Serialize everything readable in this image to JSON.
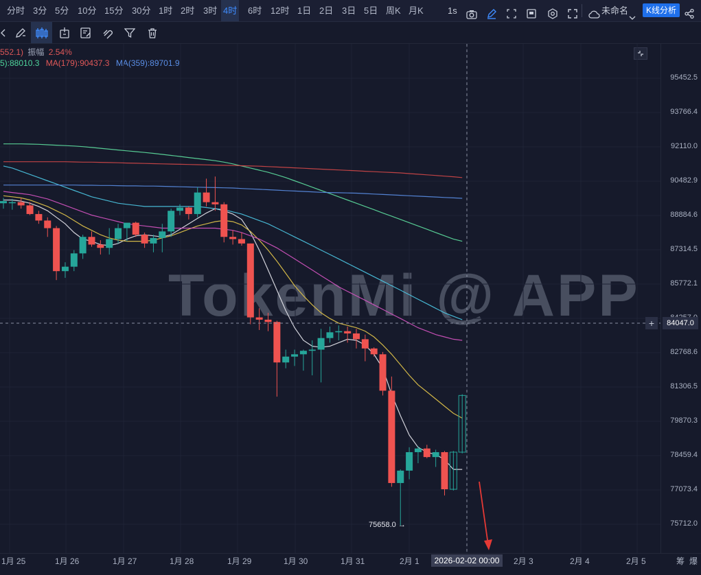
{
  "toolbar": {
    "timeframes": [
      "分时",
      "3分",
      "5分",
      "10分",
      "15分",
      "30分",
      "1时",
      "2时",
      "3时",
      "4时",
      "6时",
      "12时",
      "1日",
      "2日",
      "3日",
      "5日",
      "周K",
      "月K"
    ],
    "active_timeframe": "4时",
    "interval_label": "1s",
    "layout_name": "未命名",
    "k_analysis_label": "K线分析"
  },
  "info": {
    "line1_prefix": "552.1)",
    "line1_amp_label": "振幅",
    "line1_amp_value": "2.54%",
    "ma_a": "5):88010.3",
    "ma_b": "MA(179):90437.3",
    "ma_c": "MA(359):89701.9"
  },
  "price_axis": [
    "95452.5",
    "93766.4",
    "92110.0",
    "90482.9",
    "88884.6",
    "87314.5",
    "85772.1",
    "84257.0",
    "82768.6",
    "81306.5",
    "79870.3",
    "78459.4",
    "77073.4",
    "75712.0"
  ],
  "crosshair": {
    "price": "84047.0",
    "time": "2026-02-02 00:00"
  },
  "low_marker": "75658.0 →",
  "time_axis": [
    "1月 25",
    "1月 26",
    "1月 27",
    "1月 28",
    "1月 29",
    "1月 30",
    "1月 31",
    "2月 1",
    "2月 3",
    "2月 4",
    "2月 5"
  ],
  "bottom_right": [
    "筹",
    "爆"
  ],
  "watermark": "TokenMi @ APP",
  "colors": {
    "up": "#26a69a",
    "down": "#ef5350",
    "accent": "#3f8cff",
    "bg": "#161a2b"
  },
  "chart_data": {
    "type": "candlestick",
    "price_range": [
      75000,
      96500
    ],
    "candles": [
      {
        "o": 89450,
        "h": 89700,
        "l": 89200,
        "c": 89550
      },
      {
        "o": 89450,
        "h": 89650,
        "l": 89150,
        "c": 89500
      },
      {
        "o": 89500,
        "h": 89700,
        "l": 89200,
        "c": 89350
      },
      {
        "o": 89350,
        "h": 89500,
        "l": 88900,
        "c": 88950
      },
      {
        "o": 88950,
        "h": 89100,
        "l": 88500,
        "c": 88650
      },
      {
        "o": 88650,
        "h": 88800,
        "l": 87900,
        "c": 88300
      },
      {
        "o": 88300,
        "h": 88400,
        "l": 85950,
        "c": 86350
      },
      {
        "o": 86350,
        "h": 86750,
        "l": 86050,
        "c": 86550
      },
      {
        "o": 86550,
        "h": 87300,
        "l": 86350,
        "c": 87150
      },
      {
        "o": 87150,
        "h": 88000,
        "l": 86900,
        "c": 87900
      },
      {
        "o": 87900,
        "h": 88150,
        "l": 87450,
        "c": 87550
      },
      {
        "o": 87550,
        "h": 87750,
        "l": 87100,
        "c": 87400
      },
      {
        "o": 87400,
        "h": 88300,
        "l": 87100,
        "c": 87800
      },
      {
        "o": 87800,
        "h": 88500,
        "l": 87600,
        "c": 88300
      },
      {
        "o": 88300,
        "h": 88500,
        "l": 87700,
        "c": 88550
      },
      {
        "o": 88550,
        "h": 88600,
        "l": 87900,
        "c": 88000
      },
      {
        "o": 88000,
        "h": 88100,
        "l": 87400,
        "c": 87600
      },
      {
        "o": 87600,
        "h": 88000,
        "l": 87200,
        "c": 87850
      },
      {
        "o": 87850,
        "h": 88500,
        "l": 87200,
        "c": 88150
      },
      {
        "o": 88150,
        "h": 89200,
        "l": 87900,
        "c": 89100
      },
      {
        "o": 89100,
        "h": 89400,
        "l": 88900,
        "c": 89250
      },
      {
        "o": 89250,
        "h": 89300,
        "l": 88700,
        "c": 88950
      },
      {
        "o": 88950,
        "h": 90200,
        "l": 88800,
        "c": 89950
      },
      {
        "o": 89950,
        "h": 90600,
        "l": 89300,
        "c": 89500
      },
      {
        "o": 89500,
        "h": 90700,
        "l": 89100,
        "c": 89400
      },
      {
        "o": 89400,
        "h": 89500,
        "l": 87650,
        "c": 87900
      },
      {
        "o": 87900,
        "h": 88200,
        "l": 87550,
        "c": 87800
      },
      {
        "o": 87800,
        "h": 88100,
        "l": 87500,
        "c": 87600
      },
      {
        "o": 87600,
        "h": 87600,
        "l": 84000,
        "c": 84300
      },
      {
        "o": 84300,
        "h": 84700,
        "l": 83750,
        "c": 84200
      },
      {
        "o": 84200,
        "h": 84500,
        "l": 83700,
        "c": 84100
      },
      {
        "o": 84100,
        "h": 84150,
        "l": 80900,
        "c": 82350
      },
      {
        "o": 82350,
        "h": 82900,
        "l": 82100,
        "c": 82600
      },
      {
        "o": 82600,
        "h": 82900,
        "l": 82200,
        "c": 82700
      },
      {
        "o": 82700,
        "h": 82900,
        "l": 82000,
        "c": 82850
      },
      {
        "o": 82850,
        "h": 83300,
        "l": 81800,
        "c": 82900
      },
      {
        "o": 82900,
        "h": 83800,
        "l": 81500,
        "c": 83400
      },
      {
        "o": 83400,
        "h": 83900,
        "l": 83200,
        "c": 83650
      },
      {
        "o": 83650,
        "h": 83950,
        "l": 83300,
        "c": 83700
      },
      {
        "o": 83700,
        "h": 83900,
        "l": 83200,
        "c": 83600
      },
      {
        "o": 83600,
        "h": 83800,
        "l": 82950,
        "c": 83350
      },
      {
        "o": 83350,
        "h": 83550,
        "l": 82400,
        "c": 82950
      },
      {
        "o": 82950,
        "h": 83000,
        "l": 82600,
        "c": 82700
      },
      {
        "o": 82700,
        "h": 82800,
        "l": 80950,
        "c": 81150
      },
      {
        "o": 81150,
        "h": 81750,
        "l": 77200,
        "c": 77350
      },
      {
        "o": 77350,
        "h": 77900,
        "l": 75658,
        "c": 77850
      },
      {
        "o": 77850,
        "h": 78800,
        "l": 77500,
        "c": 78600
      },
      {
        "o": 78600,
        "h": 78850,
        "l": 78150,
        "c": 78750
      },
      {
        "o": 78750,
        "h": 78900,
        "l": 78350,
        "c": 78400
      },
      {
        "o": 78400,
        "h": 78700,
        "l": 78000,
        "c": 78600
      },
      {
        "o": 78600,
        "h": 78650,
        "l": 76850,
        "c": 77100
      },
      {
        "o": 77100,
        "h": 78650,
        "l": 77050,
        "c": 78600
      },
      {
        "o": 78600,
        "h": 81000,
        "l": 78550,
        "c": 80950
      }
    ],
    "hollow_last": 2,
    "ma_lines": [
      {
        "name": "white",
        "color": "#e8e8ee",
        "values": [
          89600,
          89600,
          89550,
          89450,
          89300,
          89100,
          88800,
          88500,
          88100,
          87800,
          87700,
          87550,
          87500,
          87600,
          87800,
          87950,
          88000,
          87950,
          87900,
          88000,
          88250,
          88500,
          88750,
          89000,
          89200,
          89100,
          88950,
          88700,
          88100,
          87300,
          86400,
          85500,
          84600,
          83850,
          83300,
          83050,
          83000,
          83050,
          83200,
          83350,
          83300,
          83100,
          82700,
          82100,
          81000,
          80100,
          79300,
          78800,
          78600,
          78500,
          78300,
          77900,
          77900
        ]
      },
      {
        "name": "yellow",
        "color": "#e6c84a",
        "values": [
          89800,
          89750,
          89700,
          89600,
          89450,
          89300,
          89100,
          88900,
          88650,
          88400,
          88200,
          88000,
          87850,
          87750,
          87700,
          87700,
          87700,
          87750,
          87850,
          87950,
          88100,
          88250,
          88400,
          88500,
          88600,
          88650,
          88600,
          88450,
          88150,
          87750,
          87300,
          86800,
          86250,
          85700,
          85250,
          84850,
          84500,
          84250,
          84050,
          83950,
          83850,
          83700,
          83450,
          83100,
          82700,
          82250,
          81800,
          81400,
          81100,
          80800,
          80500,
          80200,
          80000
        ]
      },
      {
        "name": "pink",
        "color": "#d654c2",
        "values": [
          90000,
          89950,
          89900,
          89850,
          89750,
          89650,
          89500,
          89350,
          89200,
          89050,
          88900,
          88800,
          88700,
          88600,
          88500,
          88450,
          88400,
          88350,
          88300,
          88300,
          88300,
          88300,
          88300,
          88300,
          88300,
          88250,
          88200,
          88100,
          87950,
          87800,
          87600,
          87400,
          87150,
          86900,
          86650,
          86400,
          86150,
          85900,
          85650,
          85450,
          85250,
          85050,
          84850,
          84650,
          84450,
          84250,
          84050,
          83850,
          83700,
          83550,
          83450,
          83350,
          83300
        ]
      },
      {
        "name": "cyan",
        "color": "#4cc9e6",
        "values": [
          91200,
          91100,
          90950,
          90800,
          90650,
          90500,
          90350,
          90200,
          90050,
          89900,
          89750,
          89650,
          89550,
          89450,
          89400,
          89350,
          89300,
          89300,
          89300,
          89300,
          89300,
          89300,
          89300,
          89250,
          89200,
          89150,
          89050,
          88950,
          88800,
          88650,
          88500,
          88300,
          88100,
          87900,
          87700,
          87500,
          87300,
          87100,
          86900,
          86700,
          86500,
          86300,
          86100,
          85900,
          85700,
          85500,
          85300,
          85100,
          84900,
          84700,
          84500,
          84350,
          84200
        ]
      },
      {
        "name": "green",
        "color": "#5ee0a0",
        "values": [
          92250,
          92250,
          92250,
          92240,
          92230,
          92210,
          92190,
          92170,
          92150,
          92120,
          92080,
          92040,
          92000,
          91960,
          91920,
          91880,
          91840,
          91800,
          91750,
          91700,
          91650,
          91600,
          91550,
          91500,
          91450,
          91380,
          91300,
          91200,
          91100,
          91000,
          90900,
          90780,
          90650,
          90500,
          90350,
          90200,
          90050,
          89900,
          89750,
          89600,
          89450,
          89300,
          89150,
          89000,
          88850,
          88700,
          88550,
          88400,
          88250,
          88100,
          87950,
          87800,
          87700
        ]
      },
      {
        "name": "red",
        "color": "#d44848",
        "values": [
          91400,
          91400,
          91400,
          91400,
          91400,
          91400,
          91400,
          91400,
          91390,
          91380,
          91380,
          91370,
          91360,
          91350,
          91340,
          91330,
          91320,
          91310,
          91300,
          91290,
          91280,
          91270,
          91260,
          91250,
          91240,
          91230,
          91220,
          91210,
          91200,
          91190,
          91170,
          91150,
          91130,
          91110,
          91090,
          91070,
          91050,
          91030,
          91010,
          90990,
          90970,
          90950,
          90930,
          90910,
          90890,
          90870,
          90840,
          90810,
          90780,
          90750,
          90720,
          90690,
          90650
        ]
      },
      {
        "name": "blue",
        "color": "#5a8ee6",
        "values": [
          90300,
          90300,
          90300,
          90300,
          90300,
          90300,
          90300,
          90300,
          90300,
          90290,
          90290,
          90280,
          90280,
          90270,
          90260,
          90260,
          90250,
          90250,
          90240,
          90230,
          90220,
          90210,
          90200,
          90190,
          90180,
          90170,
          90160,
          90140,
          90120,
          90100,
          90080,
          90060,
          90040,
          90020,
          90000,
          89980,
          89960,
          89950,
          89940,
          89930,
          89920,
          89900,
          89880,
          89860,
          89840,
          89820,
          89800,
          89780,
          89760,
          89740,
          89720,
          89700,
          89680
        ]
      }
    ]
  }
}
